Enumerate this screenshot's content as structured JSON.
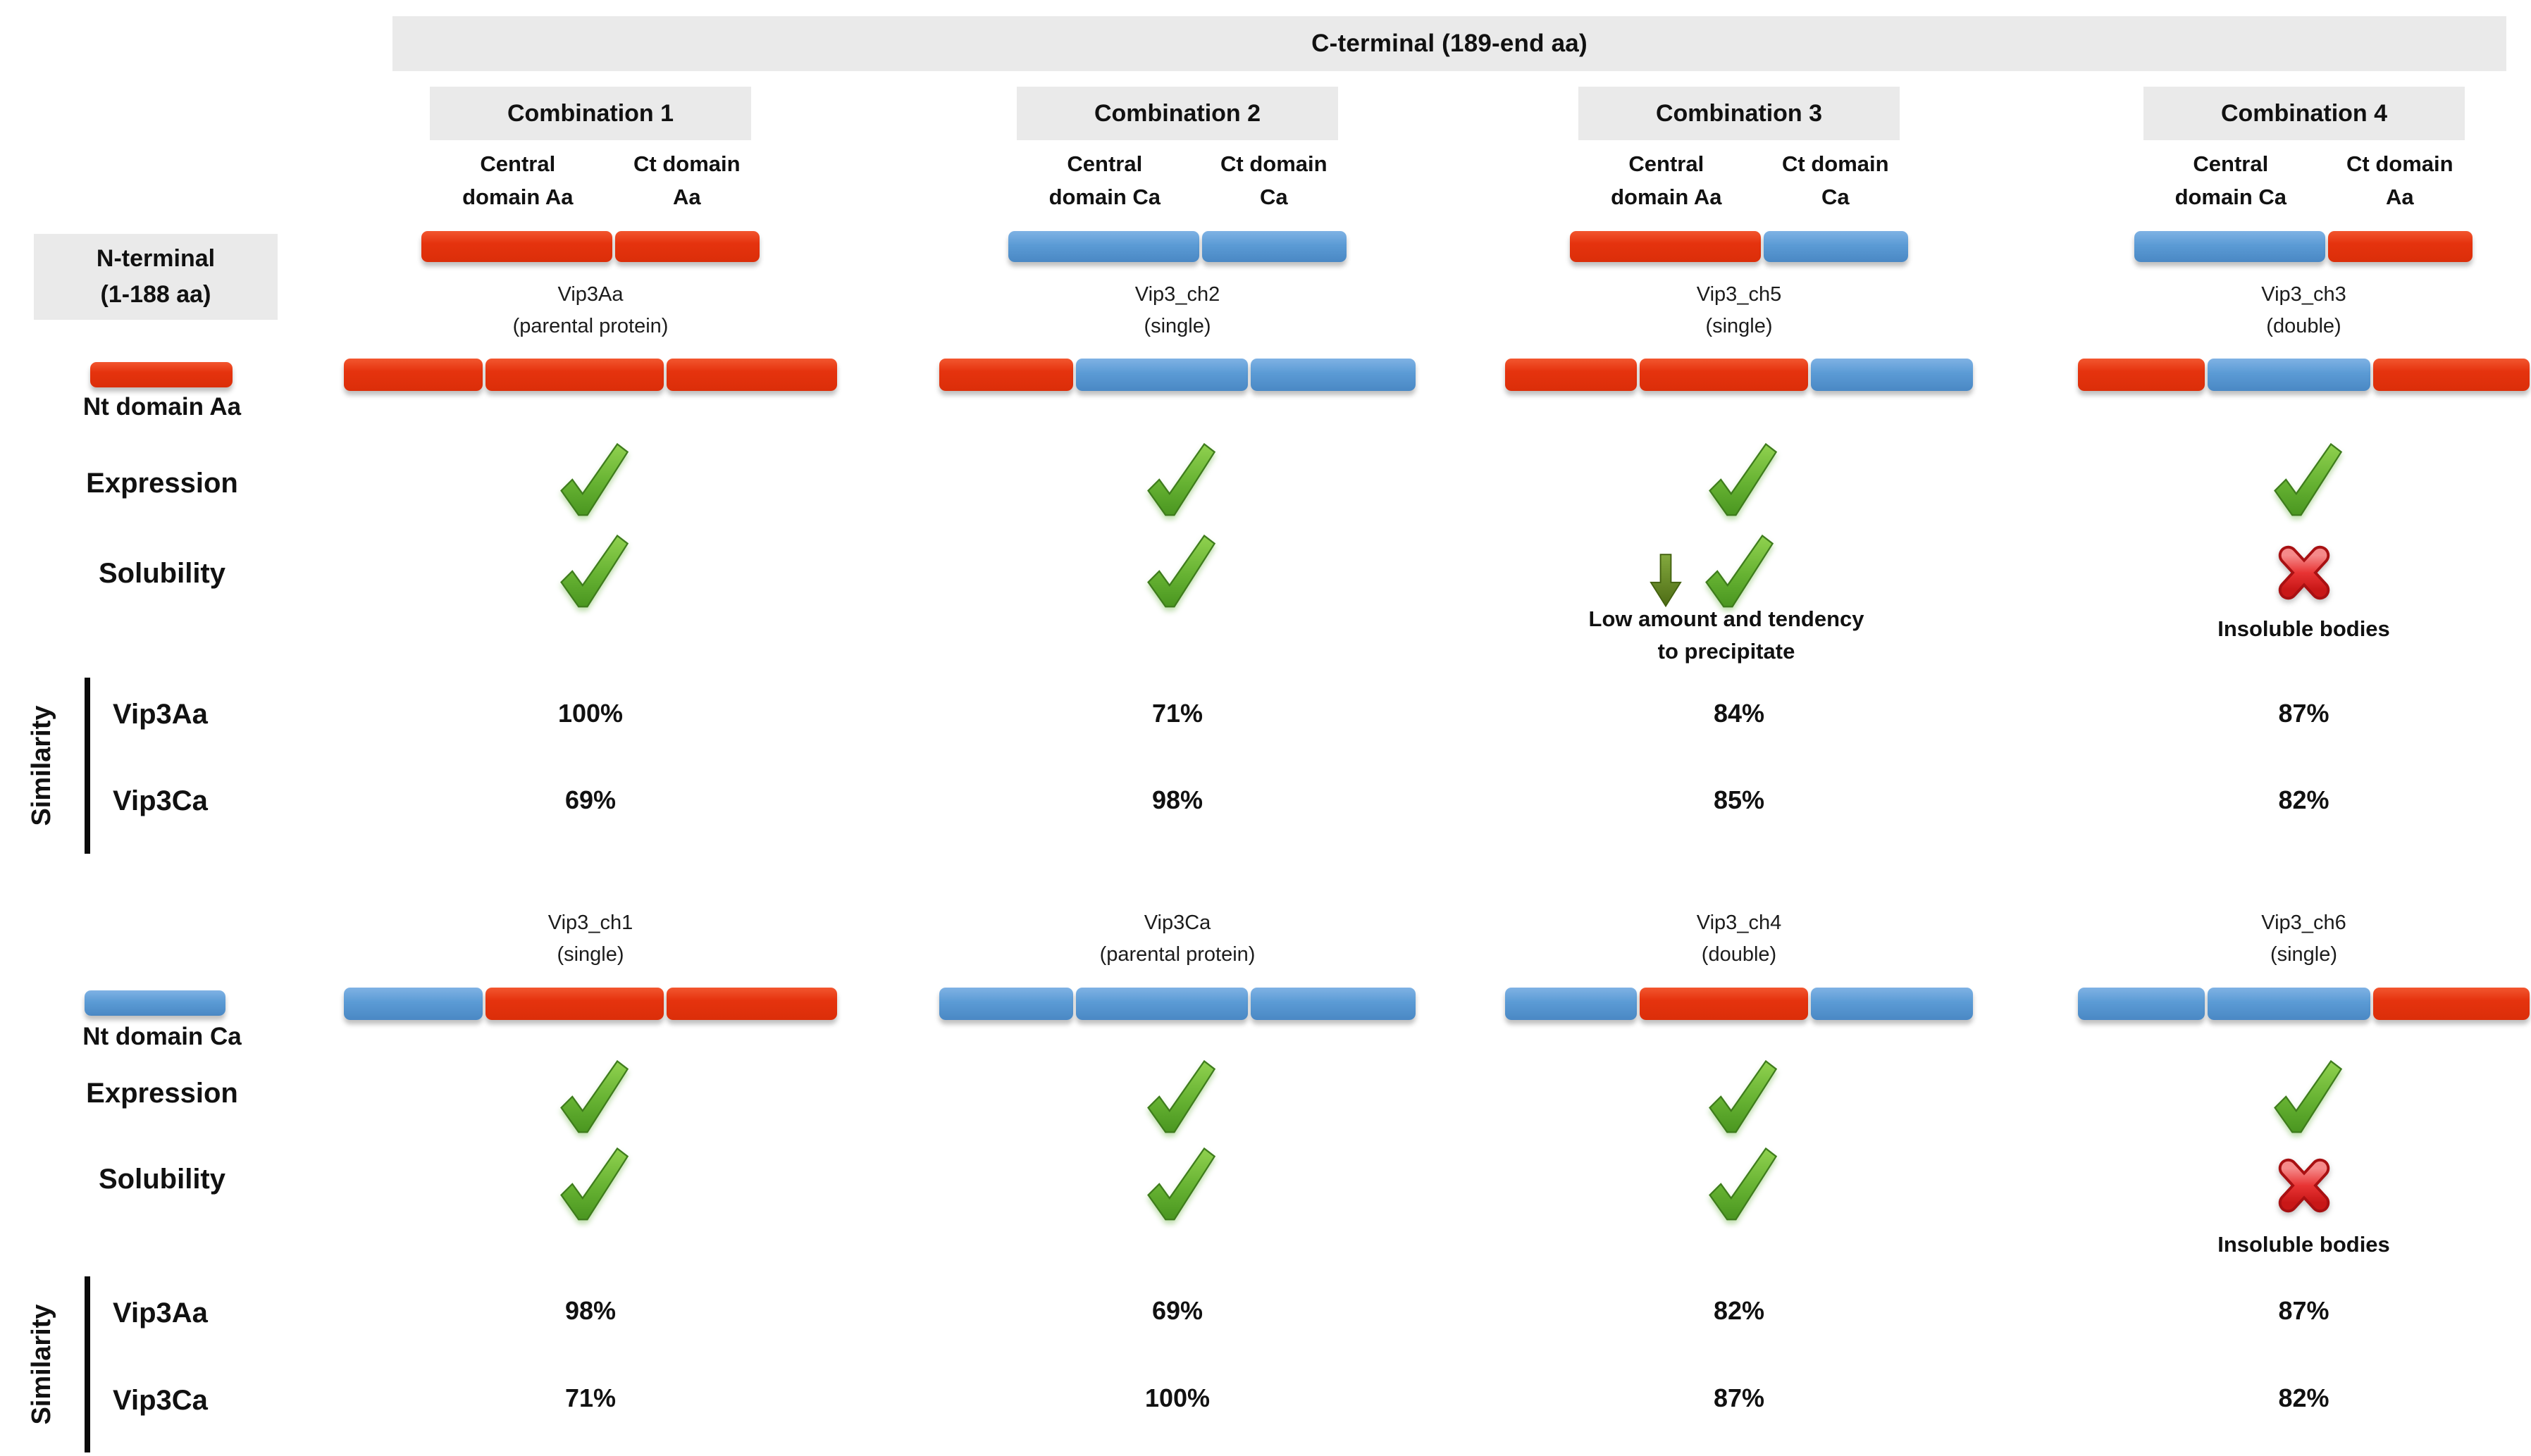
{
  "palette": {
    "domain_red": "#E5330E",
    "domain_blue": "#5B9BD5",
    "header_gray": "#EAEAEA",
    "check_green": "#5AAE2B",
    "cross_red": "#E02424",
    "arrow_green": "#5E8427",
    "text_black": "#111111"
  },
  "icons": {
    "check": "green-check-mark",
    "cross": "red-cross-mark",
    "down_arrow": "green-down-arrow"
  },
  "header": {
    "c_terminal": "C-terminal (189-end aa)",
    "n_terminal": "N-terminal\n(1-188 aa)"
  },
  "labels": {
    "expression": "Expression",
    "solubility": "Solubility",
    "similarity": "Similarity",
    "sim_vip3aa": "Vip3Aa",
    "sim_vip3ca": "Vip3Ca"
  },
  "combinations": [
    {
      "label": "Combination 1",
      "central": "Central\ndomain Aa",
      "ct": "Ct domain\nAa",
      "bar": [
        "red",
        "red"
      ]
    },
    {
      "label": "Combination 2",
      "central": "Central\ndomain Ca",
      "ct": "Ct domain\nCa",
      "bar": [
        "blue",
        "blue"
      ]
    },
    {
      "label": "Combination 3",
      "central": "Central\ndomain Aa",
      "ct": "Ct domain\nCa",
      "bar": [
        "red",
        "blue"
      ]
    },
    {
      "label": "Combination 4",
      "central": "Central\ndomain Ca",
      "ct": "Ct domain\nAa",
      "bar": [
        "blue",
        "red"
      ]
    }
  ],
  "top": {
    "nt_label": "Nt domain Aa",
    "nt_bar": [
      "red"
    ],
    "proteins": [
      {
        "name": "Vip3Aa",
        "variant": "(parental protein)",
        "segments": [
          "red",
          "red",
          "red"
        ],
        "expression": "check",
        "solubility": "check",
        "solubility_note": "",
        "sim_vip3aa": "100%",
        "sim_vip3ca": "69%"
      },
      {
        "name": "Vip3_ch2",
        "variant": "(single)",
        "segments": [
          "red",
          "blue",
          "blue"
        ],
        "expression": "check",
        "solubility": "check",
        "solubility_note": "",
        "sim_vip3aa": "71%",
        "sim_vip3ca": "98%"
      },
      {
        "name": "Vip3_ch5",
        "variant": "(single)",
        "segments": [
          "red",
          "red",
          "blue"
        ],
        "expression": "check",
        "solubility": "check_with_down_arrow",
        "solubility_note": "Low amount and tendency\nto precipitate",
        "sim_vip3aa": "84%",
        "sim_vip3ca": "85%"
      },
      {
        "name": "Vip3_ch3",
        "variant": "(double)",
        "segments": [
          "red",
          "blue",
          "red"
        ],
        "expression": "check",
        "solubility": "cross",
        "solubility_note": "Insoluble bodies",
        "sim_vip3aa": "87%",
        "sim_vip3ca": "82%"
      }
    ]
  },
  "bottom": {
    "nt_label": "Nt domain Ca",
    "nt_bar": [
      "blue"
    ],
    "proteins": [
      {
        "name": "Vip3_ch1",
        "variant": "(single)",
        "segments": [
          "blue",
          "red",
          "red"
        ],
        "expression": "check",
        "solubility": "check",
        "solubility_note": "",
        "sim_vip3aa": "98%",
        "sim_vip3ca": "71%"
      },
      {
        "name": "Vip3Ca",
        "variant": "(parental protein)",
        "segments": [
          "blue",
          "blue",
          "blue"
        ],
        "expression": "check",
        "solubility": "check",
        "solubility_note": "",
        "sim_vip3aa": "69%",
        "sim_vip3ca": "100%"
      },
      {
        "name": "Vip3_ch4",
        "variant": "(double)",
        "segments": [
          "blue",
          "red",
          "blue"
        ],
        "expression": "check",
        "solubility": "check",
        "solubility_note": "",
        "sim_vip3aa": "82%",
        "sim_vip3ca": "87%"
      },
      {
        "name": "Vip3_ch6",
        "variant": "(single)",
        "segments": [
          "blue",
          "blue",
          "red"
        ],
        "expression": "check",
        "solubility": "cross",
        "solubility_note": "Insoluble bodies",
        "sim_vip3aa": "87%",
        "sim_vip3ca": "82%"
      }
    ]
  }
}
